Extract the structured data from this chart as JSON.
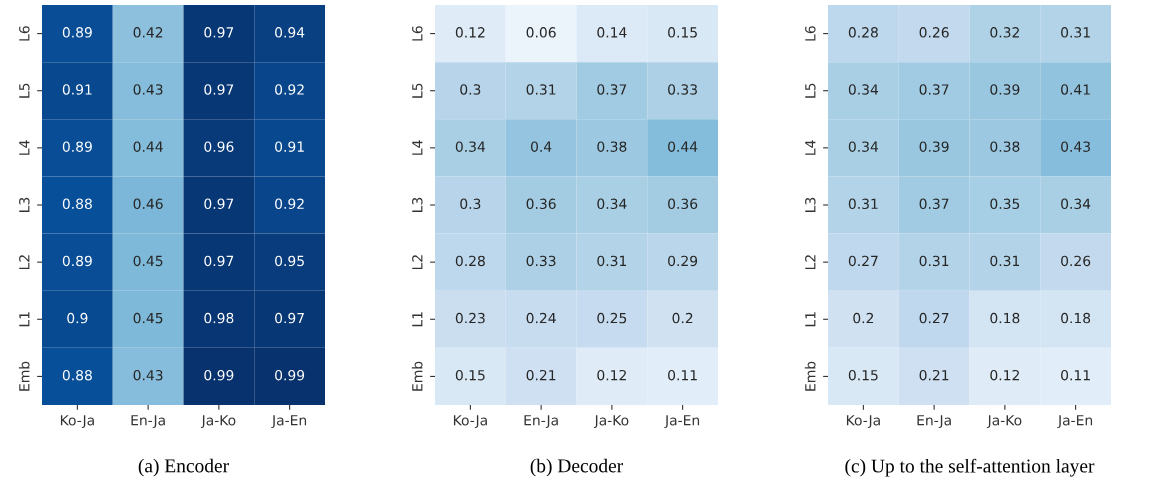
{
  "chart_data": [
    {
      "type": "heatmap",
      "xlabel": "(a) Encoder",
      "data_labels": true,
      "categories": [
        "Ko-Ja",
        "En-Ja",
        "Ja-Ko",
        "Ja-En"
      ],
      "y_categories": [
        "L6",
        "L5",
        "L4",
        "L3",
        "L2",
        "L1",
        "Emb"
      ],
      "cells": [
        [
          0.89,
          0.42,
          0.97,
          0.94
        ],
        [
          0.91,
          0.43,
          0.97,
          0.92
        ],
        [
          0.89,
          0.44,
          0.96,
          0.91
        ],
        [
          0.88,
          0.46,
          0.97,
          0.92
        ],
        [
          0.89,
          0.45,
          0.97,
          0.95
        ],
        [
          0.9,
          0.45,
          0.98,
          0.97
        ],
        [
          0.88,
          0.43,
          0.99,
          0.99
        ]
      ]
    },
    {
      "type": "heatmap",
      "xlabel": "(b) Decoder",
      "data_labels": true,
      "categories": [
        "Ko-Ja",
        "En-Ja",
        "Ja-Ko",
        "Ja-En"
      ],
      "y_categories": [
        "L6",
        "L5",
        "L4",
        "L3",
        "L2",
        "L1",
        "Emb"
      ],
      "cells": [
        [
          0.12,
          0.06,
          0.14,
          0.15
        ],
        [
          0.3,
          0.31,
          0.37,
          0.33
        ],
        [
          0.34,
          0.4,
          0.38,
          0.44
        ],
        [
          0.3,
          0.36,
          0.34,
          0.36
        ],
        [
          0.28,
          0.33,
          0.31,
          0.29
        ],
        [
          0.23,
          0.24,
          0.25,
          0.2
        ],
        [
          0.15,
          0.21,
          0.12,
          0.11
        ]
      ]
    },
    {
      "type": "heatmap",
      "xlabel": "(c) Up to the self-attention layer",
      "data_labels": true,
      "categories": [
        "Ko-Ja",
        "En-Ja",
        "Ja-Ko",
        "Ja-En"
      ],
      "y_categories": [
        "L6",
        "L5",
        "L4",
        "L3",
        "L2",
        "L1",
        "Emb"
      ],
      "cells": [
        [
          0.28,
          0.26,
          0.32,
          0.31
        ],
        [
          0.34,
          0.37,
          0.39,
          0.41
        ],
        [
          0.34,
          0.39,
          0.38,
          0.43
        ],
        [
          0.31,
          0.37,
          0.35,
          0.34
        ],
        [
          0.27,
          0.31,
          0.31,
          0.26
        ],
        [
          0.2,
          0.27,
          0.18,
          0.18
        ],
        [
          0.15,
          0.21,
          0.12,
          0.11
        ]
      ]
    }
  ]
}
